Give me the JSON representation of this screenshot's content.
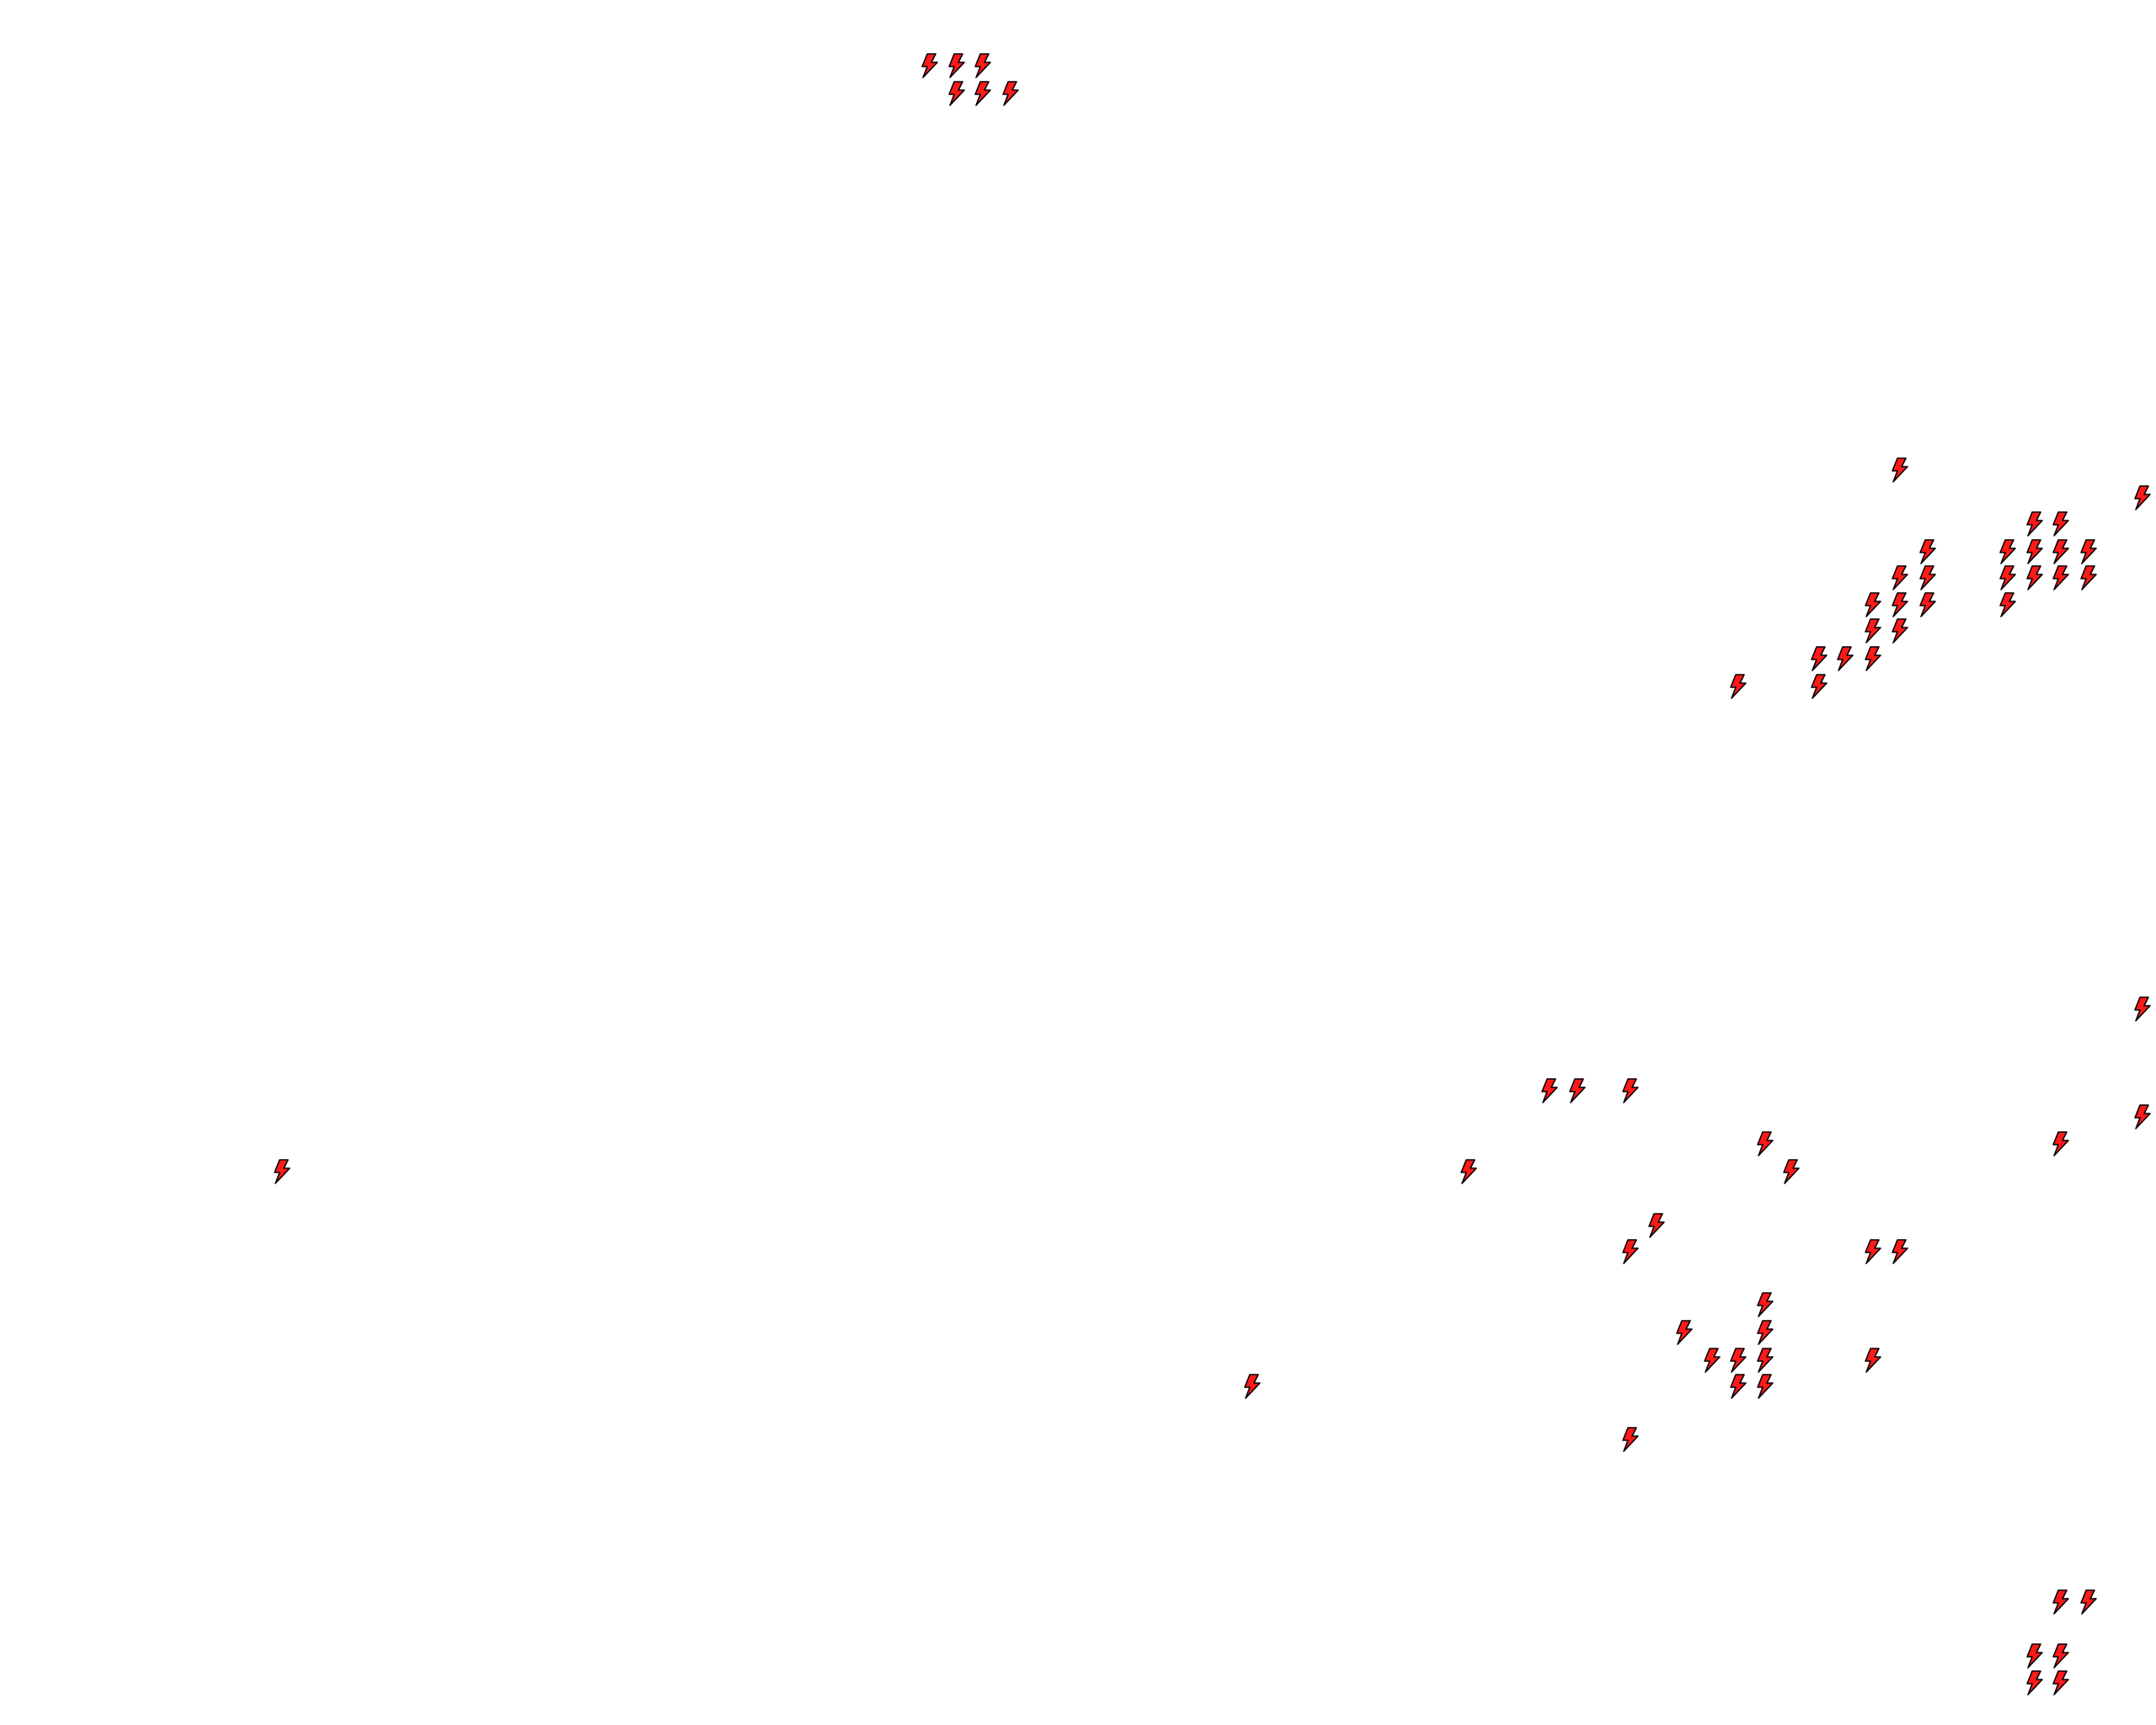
{
  "map": {
    "background": "#ffffff",
    "marker_icon": "lightning-bolt-icon",
    "marker_fill": "#ff1a1a",
    "marker_stroke": "#000000",
    "marker_count": 66
  }
}
